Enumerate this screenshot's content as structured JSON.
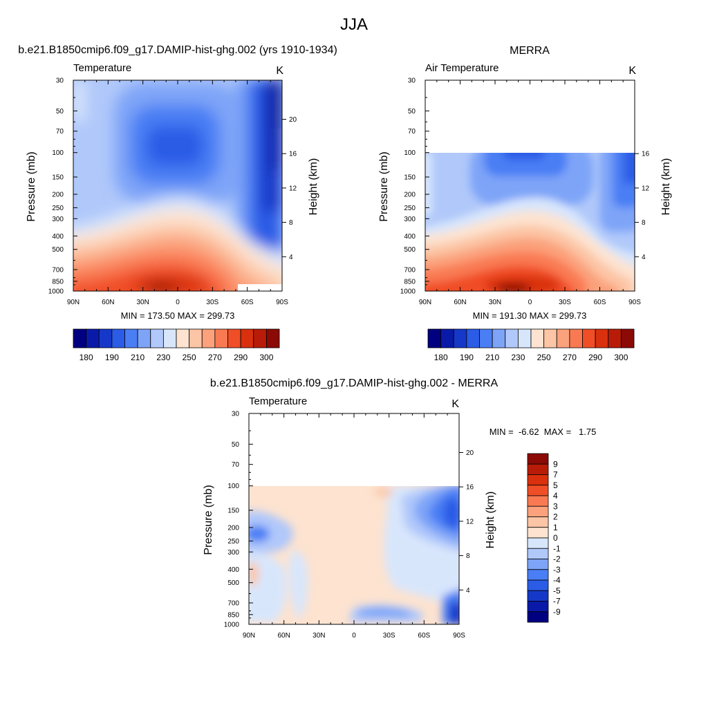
{
  "figure": {
    "title": "JJA"
  },
  "chart_data": [
    {
      "type": "heatmap",
      "kind": "filled-contour",
      "title": "b.e21.B1850cmip6.f09_g17.DAMIP-hist-ghg.002 (yrs 1910-1934)",
      "left_label": "Temperature",
      "right_label": "K",
      "xlabel": "",
      "ylabel": "Pressure (mb)",
      "y2label": "Height (km)",
      "x_ticks": [
        "90N",
        "60N",
        "30N",
        "0",
        "30S",
        "60S",
        "90S"
      ],
      "y_ticks": [
        30,
        50,
        70,
        100,
        150,
        200,
        250,
        300,
        400,
        500,
        700,
        850,
        1000
      ],
      "y2_ticks": [
        4,
        8,
        12,
        16,
        20
      ],
      "y_scale": "log",
      "ylim": [
        1000,
        30
      ],
      "stats_text": "MIN = 173.50  MAX = 299.73",
      "min": 173.5,
      "max": 299.73,
      "colorbar_labels": [
        "180",
        "190",
        "210",
        "230",
        "250",
        "270",
        "290",
        "300"
      ],
      "colorbar_orientation": "horizontal"
    },
    {
      "type": "heatmap",
      "kind": "filled-contour",
      "title": "MERRA",
      "left_label": "Air Temperature",
      "right_label": "K",
      "xlabel": "",
      "ylabel": "Pressure (mb)",
      "y2label": "Height (km)",
      "x_ticks": [
        "90N",
        "60N",
        "30N",
        "0",
        "30S",
        "60S",
        "90S"
      ],
      "y_ticks": [
        30,
        50,
        70,
        100,
        150,
        200,
        250,
        300,
        400,
        500,
        700,
        850,
        1000
      ],
      "y2_ticks": [
        4,
        8,
        12,
        16
      ],
      "y_scale": "log",
      "ylim": [
        1000,
        30
      ],
      "data_top_mb": 100,
      "stats_text": "MIN = 191.30  MAX = 299.73",
      "min": 191.3,
      "max": 299.73,
      "colorbar_labels": [
        "180",
        "190",
        "210",
        "230",
        "250",
        "270",
        "290",
        "300"
      ],
      "colorbar_orientation": "horizontal"
    },
    {
      "type": "heatmap",
      "kind": "filled-contour",
      "title": "b.e21.B1850cmip6.f09_g17.DAMIP-hist-ghg.002 - MERRA",
      "left_label": "Temperature",
      "right_label": "K",
      "xlabel": "",
      "ylabel": "Pressure (mb)",
      "y2label": "Height (km)",
      "x_ticks": [
        "90N",
        "60N",
        "30N",
        "0",
        "30S",
        "60S",
        "90S"
      ],
      "y_ticks": [
        30,
        50,
        70,
        100,
        150,
        200,
        250,
        300,
        400,
        500,
        700,
        850,
        1000
      ],
      "y2_ticks": [
        4,
        8,
        12,
        16,
        20
      ],
      "y_scale": "log",
      "ylim": [
        1000,
        30
      ],
      "data_top_mb": 100,
      "stats_text": "MIN =  -6.62  MAX =   1.75",
      "min": -6.62,
      "max": 1.75,
      "colorbar_labels": [
        "9",
        "7",
        "5",
        "4",
        "3",
        "2",
        "1",
        "0",
        "-1",
        "-2",
        "-3",
        "-4",
        "-5",
        "-7",
        "-9"
      ],
      "colorbar_orientation": "vertical"
    }
  ],
  "colors": {
    "abs_scale": [
      "#000080",
      "#0a1aa8",
      "#1638c8",
      "#2a5ce6",
      "#4a7ef4",
      "#7ea4f8",
      "#b0c8fa",
      "#d8e6fc",
      "#fde3d0",
      "#fcc5a5",
      "#fba17c",
      "#f97a52",
      "#f04e26",
      "#d9300e",
      "#b81c08",
      "#8b0a06"
    ],
    "diff_scale": [
      "#8b0a06",
      "#b81c08",
      "#d9300e",
      "#f04e26",
      "#f97a52",
      "#fba17c",
      "#fcc5a5",
      "#fde3d0",
      "#d8e6fc",
      "#b0c8fa",
      "#7ea4f8",
      "#4a7ef4",
      "#2a5ce6",
      "#1638c8",
      "#0a1aa8",
      "#000080"
    ]
  }
}
